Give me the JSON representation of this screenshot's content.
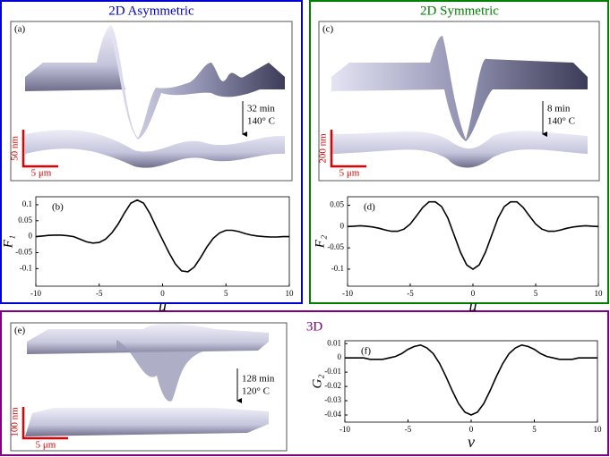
{
  "figure": {
    "panels": [
      {
        "title": "2D Asymmetric",
        "image_label": "(a)",
        "time": "32 min",
        "temperature": "140° C",
        "scale_height": "50 nm",
        "scale_width": "5 μm"
      },
      {
        "title": "2D Symmetric",
        "image_label": "(c)",
        "time": "8 min",
        "temperature": "140° C",
        "scale_height": "200 nm",
        "scale_width": "5 μm"
      },
      {
        "title": "3D",
        "image_label": "(e)",
        "time": "128 min",
        "temperature": "120° C",
        "scale_height": "100 nm",
        "scale_width": "5 μm"
      }
    ]
  },
  "chart_data": [
    {
      "type": "line",
      "label": "(b)",
      "xlabel": "u",
      "ylabel": "F₁",
      "color": "#000000",
      "x": [
        -10,
        -9.5,
        -9,
        -8.5,
        -8,
        -7.5,
        -7,
        -6.5,
        -6,
        -5.5,
        -5,
        -4.5,
        -4,
        -3.5,
        -3,
        -2.5,
        -2,
        -1.5,
        -1,
        -0.5,
        0,
        0.5,
        1,
        1.5,
        2,
        2.5,
        3,
        3.5,
        4,
        4.5,
        5,
        5.5,
        6,
        6.5,
        7,
        7.5,
        8,
        8.5,
        9,
        9.5,
        10
      ],
      "values": [
        0,
        0.002,
        0.004,
        0.005,
        0.005,
        0.003,
        0,
        -0.008,
        -0.016,
        -0.02,
        -0.018,
        -0.008,
        0.012,
        0.04,
        0.075,
        0.105,
        0.115,
        0.105,
        0.072,
        0.03,
        -0.01,
        -0.05,
        -0.085,
        -0.107,
        -0.11,
        -0.095,
        -0.065,
        -0.032,
        -0.005,
        0.012,
        0.02,
        0.02,
        0.016,
        0.01,
        0.005,
        0.002,
        0,
        -0.001,
        -0.001,
        0,
        0
      ],
      "xlim": [
        -10,
        10
      ],
      "xticks": [
        -10,
        -5,
        0,
        5,
        10
      ],
      "ylim": [
        -0.155,
        0.125
      ],
      "yticks": [
        -0.1,
        -0.05,
        0,
        0.05,
        0.1
      ]
    },
    {
      "type": "line",
      "label": "(d)",
      "xlabel": "u",
      "ylabel": "F₂",
      "color": "#000000",
      "x": [
        -10,
        -9.5,
        -9,
        -8.5,
        -8,
        -7.5,
        -7,
        -6.5,
        -6,
        -5.5,
        -5,
        -4.5,
        -4,
        -3.5,
        -3,
        -2.5,
        -2,
        -1.5,
        -1,
        -0.5,
        0,
        0.5,
        1,
        1.5,
        2,
        2.5,
        3,
        3.5,
        4,
        4.5,
        5,
        5.5,
        6,
        6.5,
        7,
        7.5,
        8,
        8.5,
        9,
        9.5,
        10
      ],
      "values": [
        0,
        0.001,
        0.002,
        0.001,
        -0.001,
        -0.004,
        -0.008,
        -0.011,
        -0.011,
        -0.006,
        0.006,
        0.025,
        0.045,
        0.058,
        0.058,
        0.047,
        0.02,
        -0.02,
        -0.06,
        -0.09,
        -0.1,
        -0.09,
        -0.06,
        -0.02,
        0.02,
        0.047,
        0.058,
        0.058,
        0.045,
        0.025,
        0.006,
        -0.006,
        -0.011,
        -0.011,
        -0.008,
        -0.004,
        -0.001,
        0.001,
        0.002,
        0.001,
        0
      ],
      "xlim": [
        -10,
        10
      ],
      "xticks": [
        -10,
        -5,
        0,
        5,
        10
      ],
      "ylim": [
        -0.14,
        0.07
      ],
      "yticks": [
        -0.1,
        -0.05,
        0,
        0.05
      ]
    },
    {
      "type": "line",
      "label": "(f)",
      "xlabel": "v",
      "ylabel": "G₂",
      "color": "#000000",
      "x": [
        -10,
        -9.5,
        -9,
        -8.5,
        -8,
        -7.5,
        -7,
        -6.5,
        -6,
        -5.5,
        -5,
        -4.5,
        -4,
        -3.5,
        -3,
        -2.5,
        -2,
        -1.5,
        -1,
        -0.5,
        0,
        0.5,
        1,
        1.5,
        2,
        2.5,
        3,
        3.5,
        4,
        4.5,
        5,
        5.5,
        6,
        6.5,
        7,
        7.5,
        8,
        8.5,
        9,
        9.5,
        10
      ],
      "values": [
        0,
        0,
        0,
        0,
        -0.001,
        -0.001,
        -0.001,
        0,
        0.001,
        0.003,
        0.006,
        0.008,
        0.009,
        0.007,
        0.003,
        -0.004,
        -0.013,
        -0.023,
        -0.032,
        -0.038,
        -0.04,
        -0.038,
        -0.032,
        -0.023,
        -0.013,
        -0.004,
        0.003,
        0.007,
        0.009,
        0.008,
        0.006,
        0.003,
        0.001,
        0,
        -0.001,
        -0.001,
        -0.001,
        0,
        0,
        0,
        0
      ],
      "xlim": [
        -10,
        10
      ],
      "xticks": [
        -10,
        -5,
        0,
        5,
        10
      ],
      "ylim": [
        -0.045,
        0.012
      ],
      "yticks": [
        -0.04,
        -0.03,
        -0.02,
        -0.01,
        0,
        0.01
      ]
    }
  ]
}
